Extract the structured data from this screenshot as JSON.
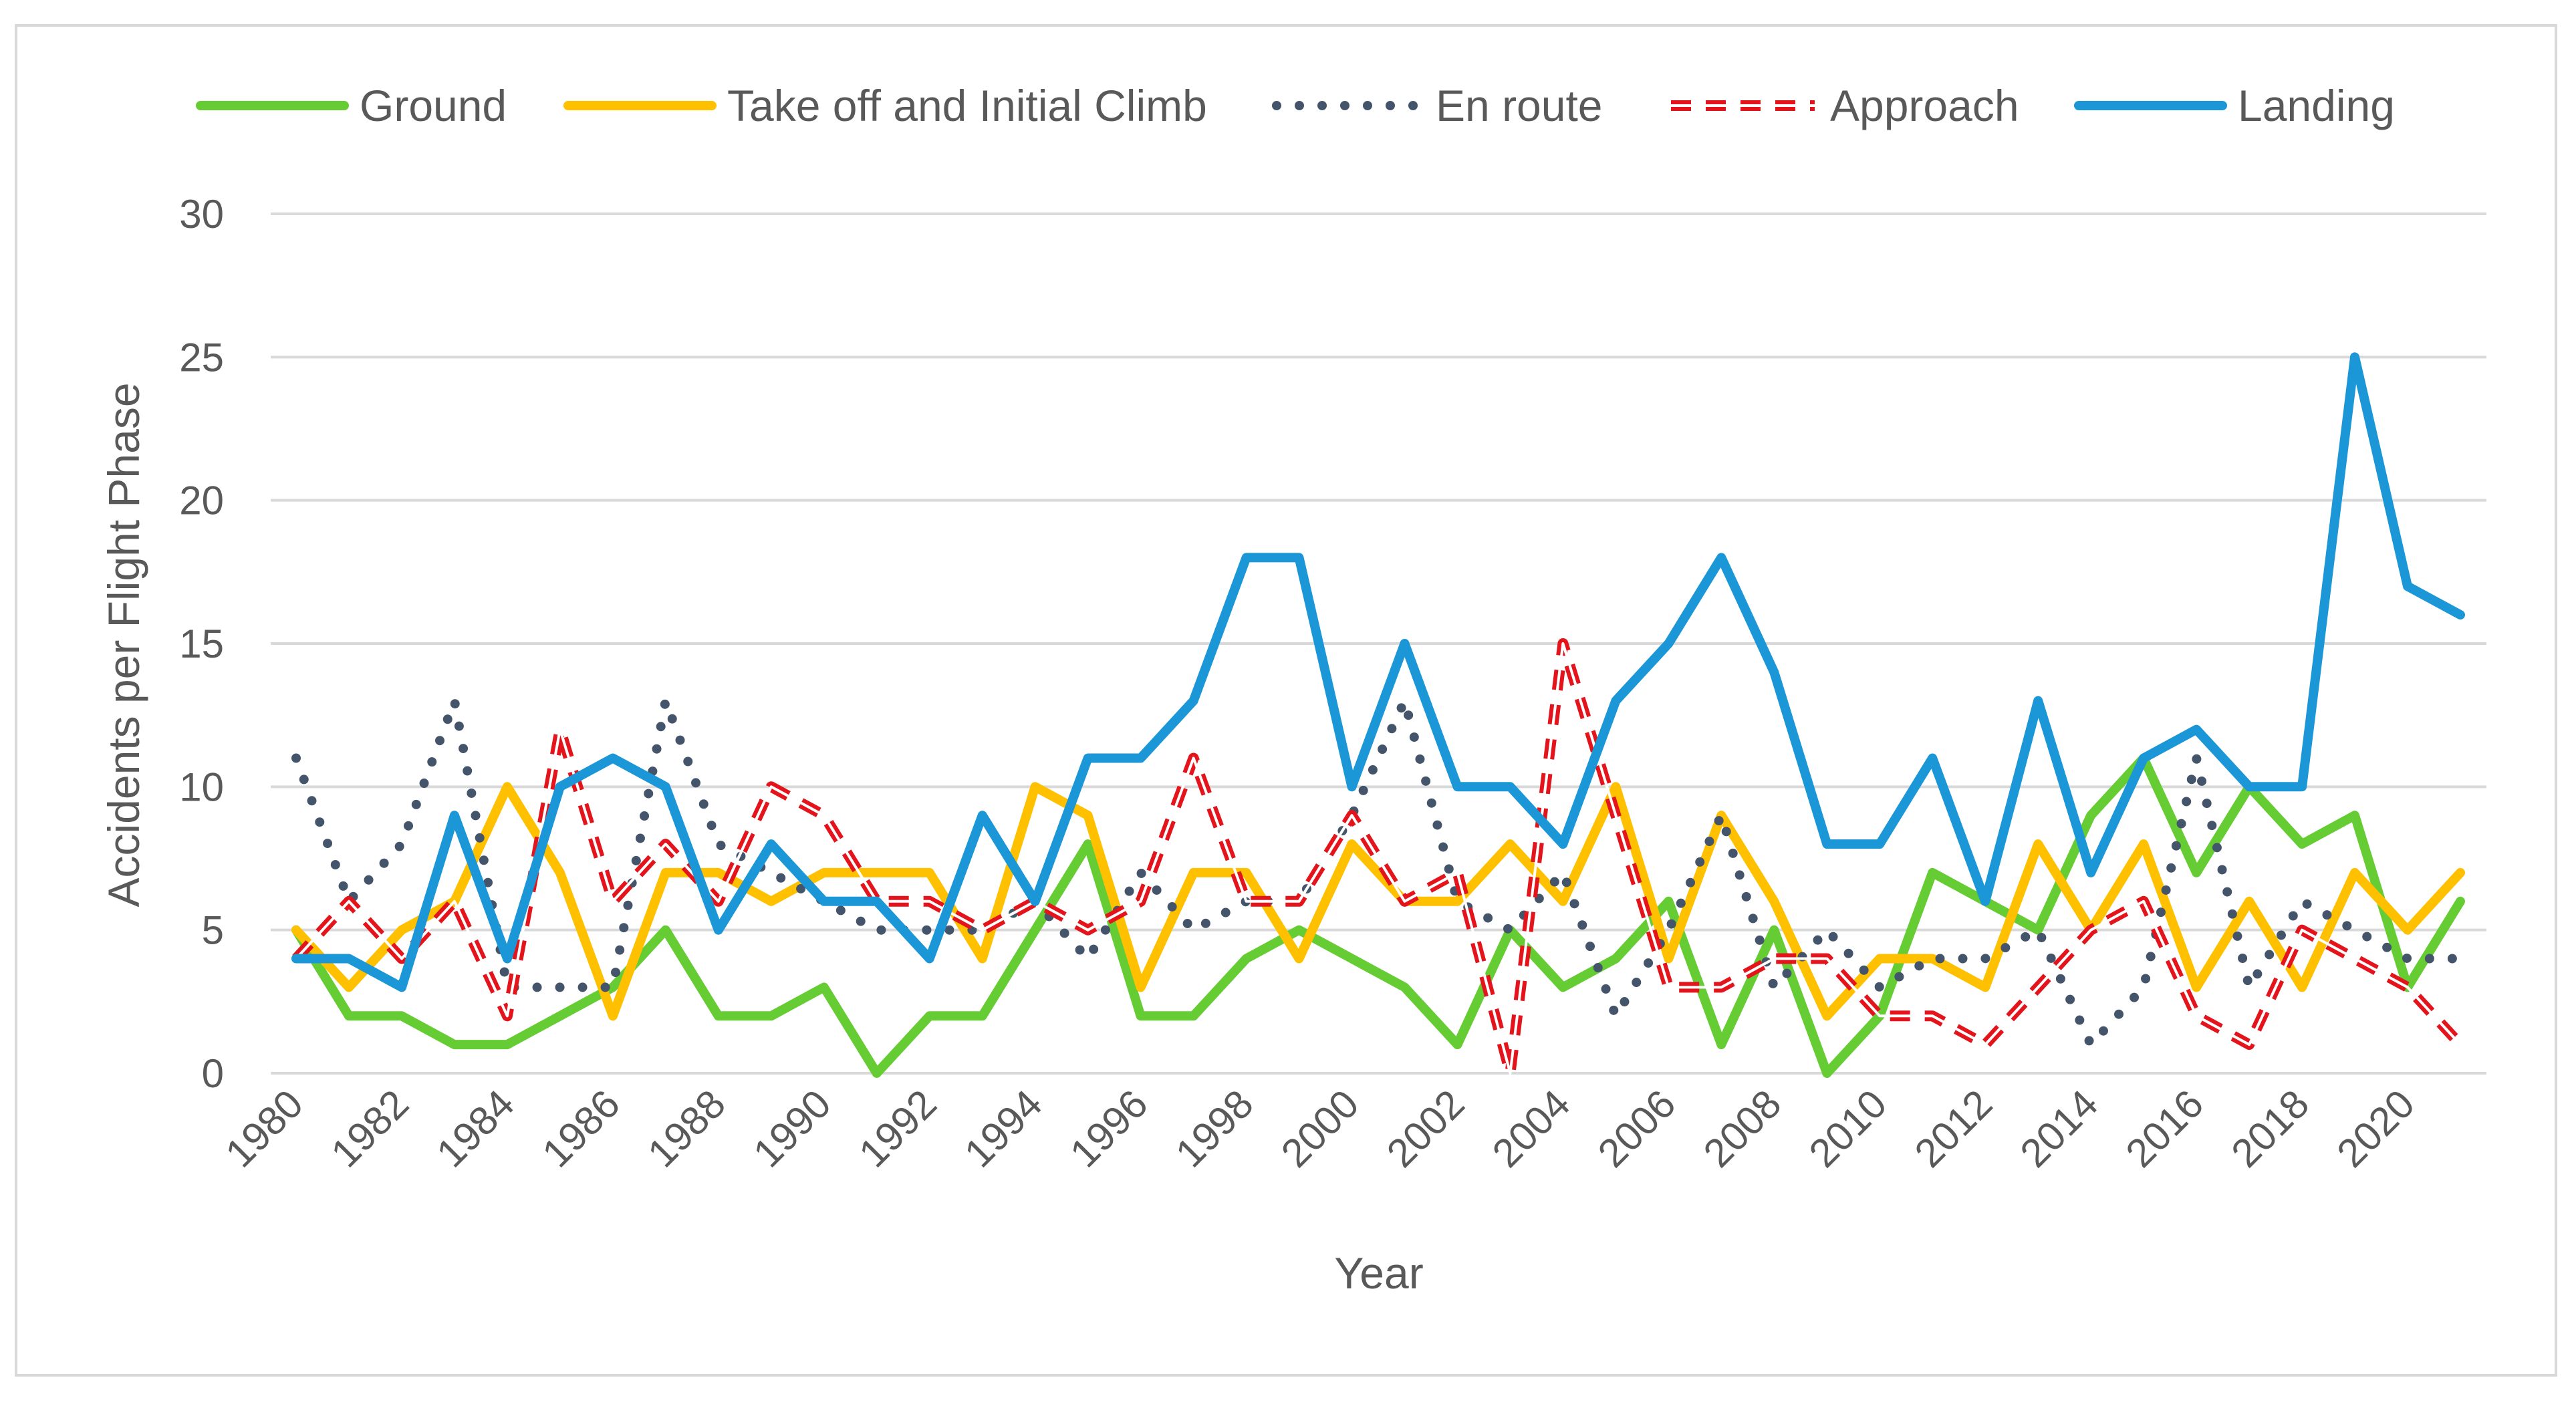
{
  "chart_data": {
    "type": "line",
    "title": "",
    "xlabel": "Year",
    "ylabel": "Accidents per Flight Phase",
    "ylim": [
      0,
      30
    ],
    "yticks": [
      0,
      5,
      10,
      15,
      20,
      25,
      30
    ],
    "grid": true,
    "legend_position": "top",
    "x": [
      1980,
      1981,
      1982,
      1983,
      1984,
      1985,
      1986,
      1987,
      1988,
      1989,
      1990,
      1991,
      1992,
      1993,
      1994,
      1995,
      1996,
      1997,
      1998,
      1999,
      2000,
      2001,
      2002,
      2003,
      2004,
      2005,
      2006,
      2007,
      2008,
      2009,
      2010,
      2011,
      2012,
      2013,
      2014,
      2015,
      2016,
      2017,
      2018,
      2019,
      2020,
      2021
    ],
    "xticks": [
      1980,
      1982,
      1984,
      1986,
      1988,
      1990,
      1992,
      1994,
      1996,
      1998,
      2000,
      2002,
      2004,
      2006,
      2008,
      2010,
      2012,
      2014,
      2016,
      2018,
      2020
    ],
    "series": [
      {
        "name": "Ground",
        "color": "#66cc33",
        "style": "solid",
        "values": [
          5,
          2,
          2,
          1,
          1,
          2,
          3,
          5,
          2,
          2,
          3,
          0,
          2,
          2,
          5,
          8,
          2,
          2,
          4,
          5,
          4,
          3,
          1,
          5,
          3,
          4,
          6,
          1,
          5,
          0,
          2,
          7,
          6,
          5,
          9,
          11,
          7,
          10,
          8,
          9,
          3,
          6
        ]
      },
      {
        "name": "Take off and Initial Climb",
        "color": "#ffc000",
        "style": "solid",
        "values": [
          5,
          3,
          5,
          6,
          10,
          7,
          2,
          7,
          7,
          6,
          7,
          7,
          7,
          4,
          10,
          9,
          3,
          7,
          7,
          4,
          8,
          6,
          6,
          8,
          6,
          10,
          4,
          9,
          6,
          2,
          4,
          4,
          3,
          8,
          5,
          8,
          3,
          6,
          3,
          7,
          5,
          7
        ]
      },
      {
        "name": "En route",
        "color": "#44546a",
        "style": "dotted",
        "values": [
          11,
          6,
          8,
          13,
          3,
          3,
          3,
          13,
          8,
          7,
          6,
          5,
          5,
          5,
          6,
          4,
          7,
          5,
          6,
          6,
          9,
          13,
          6,
          5,
          7,
          2,
          5,
          9,
          3,
          5,
          3,
          4,
          4,
          5,
          1,
          3,
          11,
          3,
          6,
          5,
          4,
          4
        ]
      },
      {
        "name": "Approach",
        "color": "#e3141b",
        "style": "dashed",
        "values": [
          4,
          6,
          4,
          6,
          2,
          12,
          6,
          8,
          6,
          10,
          9,
          6,
          6,
          5,
          6,
          5,
          6,
          11,
          6,
          6,
          9,
          6,
          7,
          0,
          15,
          9,
          3,
          3,
          4,
          4,
          2,
          2,
          1,
          3,
          5,
          6,
          2,
          1,
          5,
          4,
          3,
          1
        ]
      },
      {
        "name": "Landing",
        "color": "#1b96d7",
        "style": "solid",
        "values": [
          4,
          4,
          3,
          9,
          4,
          10,
          11,
          10,
          5,
          8,
          6,
          6,
          4,
          9,
          6,
          11,
          11,
          13,
          18,
          18,
          10,
          15,
          10,
          10,
          8,
          13,
          15,
          18,
          14,
          8,
          8,
          11,
          6,
          13,
          7,
          11,
          12,
          10,
          10,
          25,
          17,
          16
        ]
      }
    ]
  }
}
